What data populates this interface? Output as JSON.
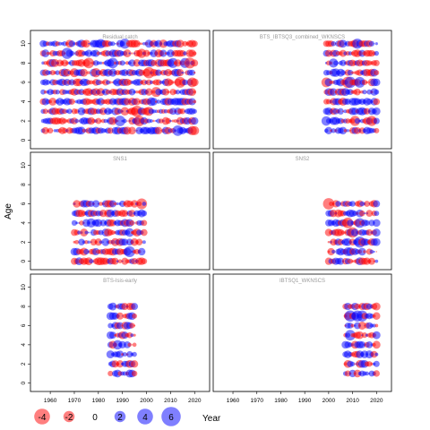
{
  "chart_data": {
    "type": "scatter",
    "subtype": "bubble-residuals",
    "ylabel": "Age",
    "xlabel": "Year",
    "x_ticks": [
      1960,
      1970,
      1980,
      1990,
      2000,
      2010,
      2020
    ],
    "y_ticks": [
      0,
      2,
      4,
      6,
      8,
      10
    ],
    "xlim": [
      1954,
      2024
    ],
    "ylim": [
      -0.5,
      11
    ],
    "colors": {
      "positive": "#0000ff",
      "negative": "#ff0000"
    },
    "legend": {
      "values": [
        -4,
        -2,
        0,
        2,
        4,
        6
      ],
      "labels": [
        "-4",
        "-2",
        "0",
        "2",
        "4",
        "6"
      ]
    },
    "panels": [
      {
        "title": "Residual catch",
        "years": [
          1957,
          2020
        ],
        "ages": [
          1,
          10
        ]
      },
      {
        "title": "BTS_IBTSQ3_combined_WKNSCS",
        "years": [
          1999,
          2020
        ],
        "ages": [
          1,
          10
        ]
      },
      {
        "title": "SNS1",
        "years": [
          1970,
          1999
        ],
        "ages": [
          0,
          6
        ]
      },
      {
        "title": "SNS2",
        "years": [
          2000,
          2020
        ],
        "ages": [
          0,
          6
        ]
      },
      {
        "title": "BTS-Isis-early",
        "years": [
          1985,
          1995
        ],
        "ages": [
          1,
          8
        ]
      },
      {
        "title": "IBTSQ1_WKNSCS",
        "years": [
          2007,
          2020
        ],
        "ages": [
          1,
          8
        ]
      }
    ]
  }
}
